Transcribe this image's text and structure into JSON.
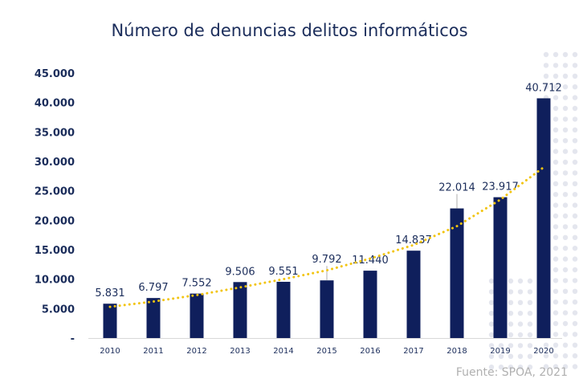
{
  "chart_data": {
    "type": "bar",
    "title": "Número de denuncias delitos informáticos",
    "categories": [
      "2010",
      "2011",
      "2012",
      "2013",
      "2014",
      "2015",
      "2016",
      "2017",
      "2018",
      "2019",
      "2020"
    ],
    "values": [
      5831,
      6797,
      7552,
      9506,
      9551,
      9792,
      11440,
      14837,
      22014,
      23917,
      40712
    ],
    "data_labels": [
      "5.831",
      "6.797",
      "7.552",
      "9.506",
      "9.551",
      "9.792",
      "11.440",
      "14.837",
      "22.014",
      "23.917",
      "40.712"
    ],
    "yticks": [
      0,
      5000,
      10000,
      15000,
      20000,
      25000,
      30000,
      35000,
      40000,
      45000
    ],
    "ytick_labels": [
      "-",
      "5.000",
      "10.000",
      "15.000",
      "20.000",
      "25.000",
      "30.000",
      "35.000",
      "40.000",
      "45.000"
    ],
    "ylim": [
      0,
      45000
    ],
    "xlabel": "",
    "ylabel": "",
    "grid": false,
    "trendline": {
      "style": "dotted",
      "type": "exponential",
      "values": [
        5300,
        6200,
        7300,
        8600,
        10000,
        11500,
        13500,
        15800,
        19000,
        23500,
        29000
      ]
    },
    "source": "Fuente: SPOA, 2021",
    "colors": {
      "bar": "#0f1f5c",
      "trend": "#f2c40f",
      "text": "#1b2d5b",
      "decor": "#e4e6ee"
    }
  }
}
